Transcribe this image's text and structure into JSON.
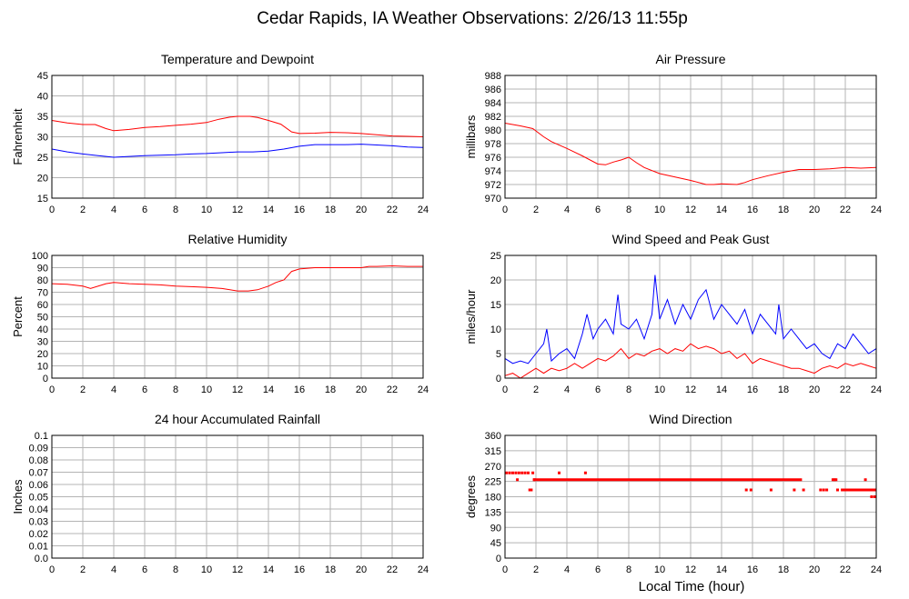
{
  "page_title": "Cedar Rapids, IA Weather Observations: 2/26/13 11:55p",
  "x_axis_label": "Local Time (hour)",
  "colors": {
    "red": "#ff0000",
    "blue": "#0000ff",
    "grid": "#b4b4b4",
    "axis": "#000000"
  },
  "chart_data": [
    {
      "id": "temp",
      "type": "line",
      "title": "Temperature and Dewpoint",
      "ylabel": "Fahrenheit",
      "xlim": [
        0,
        24
      ],
      "ylim": [
        15,
        45
      ],
      "xticks": [
        0,
        2,
        4,
        6,
        8,
        10,
        12,
        14,
        16,
        18,
        20,
        22,
        24
      ],
      "yticks": [
        "15",
        "20",
        "25",
        "30",
        "35",
        "40",
        "45"
      ],
      "series": [
        {
          "color": "#ff0000",
          "style": "line",
          "x": [
            0,
            1,
            2,
            2.8,
            3.5,
            4,
            5,
            6,
            7,
            8,
            9,
            10,
            10.8,
            11.5,
            12,
            12.8,
            13.3,
            14,
            14.8,
            15.5,
            16,
            17,
            18,
            19,
            20,
            21,
            22,
            23,
            24
          ],
          "y": [
            34,
            33.4,
            33,
            33,
            32,
            31.5,
            31.8,
            32.3,
            32.5,
            32.8,
            33.1,
            33.5,
            34.3,
            34.8,
            35,
            35,
            34.7,
            34,
            33.1,
            31.2,
            30.8,
            30.9,
            31.1,
            31,
            30.8,
            30.5,
            30.2,
            30.1,
            30
          ]
        },
        {
          "color": "#0000ff",
          "style": "line",
          "x": [
            0,
            1,
            2,
            3,
            4,
            5,
            6,
            7,
            8,
            9,
            10,
            11,
            12,
            13,
            14,
            15,
            16,
            17,
            18,
            19,
            20,
            21,
            22,
            23,
            24
          ],
          "y": [
            27,
            26.3,
            25.8,
            25.4,
            25,
            25.2,
            25.4,
            25.5,
            25.6,
            25.8,
            25.9,
            26.1,
            26.3,
            26.3,
            26.5,
            27,
            27.7,
            28.1,
            28.1,
            28.1,
            28.2,
            28,
            27.8,
            27.5,
            27.4
          ]
        }
      ]
    },
    {
      "id": "pressure",
      "type": "line",
      "title": "Air Pressure",
      "ylabel": "millibars",
      "xlim": [
        0,
        24
      ],
      "ylim": [
        970,
        988
      ],
      "xticks": [
        0,
        2,
        4,
        6,
        8,
        10,
        12,
        14,
        16,
        18,
        20,
        22,
        24
      ],
      "yticks": [
        "970",
        "972",
        "974",
        "976",
        "978",
        "980",
        "982",
        "984",
        "986",
        "988"
      ],
      "series": [
        {
          "color": "#ff0000",
          "style": "line",
          "x": [
            0,
            1,
            1.8,
            2.5,
            3,
            4,
            5,
            6,
            6.5,
            7,
            7.5,
            8,
            8.5,
            9,
            10,
            11,
            12,
            13,
            13.5,
            14,
            15,
            15.5,
            16,
            17,
            18,
            19,
            20,
            21,
            22,
            23,
            24
          ],
          "y": [
            981,
            980.6,
            980.2,
            979,
            978.3,
            977.3,
            976.2,
            975,
            974.9,
            975.3,
            975.6,
            976,
            975.2,
            974.5,
            973.6,
            973.1,
            972.6,
            972,
            972,
            972.1,
            972,
            972.3,
            972.7,
            973.3,
            973.8,
            974.2,
            974.2,
            974.3,
            974.5,
            974.4,
            974.5
          ]
        }
      ]
    },
    {
      "id": "humidity",
      "type": "line",
      "title": "Relative Humidity",
      "ylabel": "Percent",
      "xlim": [
        0,
        24
      ],
      "ylim": [
        0,
        100
      ],
      "xticks": [
        0,
        2,
        4,
        6,
        8,
        10,
        12,
        14,
        16,
        18,
        20,
        22,
        24
      ],
      "yticks": [
        "0",
        "10",
        "20",
        "30",
        "40",
        "50",
        "60",
        "70",
        "80",
        "90",
        "100"
      ],
      "series": [
        {
          "color": "#ff0000",
          "style": "line",
          "x": [
            0,
            1,
            2,
            2.5,
            3.5,
            4,
            5,
            6,
            7,
            8,
            9,
            10,
            11,
            12,
            12.7,
            13.3,
            14,
            14.5,
            15,
            15.5,
            16,
            17,
            18,
            19,
            20,
            20.5,
            21,
            22,
            23,
            24
          ],
          "y": [
            77,
            76.5,
            75,
            73,
            77,
            78,
            77,
            76.5,
            76,
            75,
            74.5,
            74,
            73,
            71,
            71,
            72,
            75,
            78,
            80,
            87,
            89,
            90,
            90,
            90,
            90,
            91,
            91,
            91.5,
            91,
            91
          ]
        }
      ]
    },
    {
      "id": "wind",
      "type": "line",
      "title": "Wind Speed and Peak Gust",
      "ylabel": "miles/hour",
      "xlim": [
        0,
        24
      ],
      "ylim": [
        0,
        25
      ],
      "xticks": [
        0,
        2,
        4,
        6,
        8,
        10,
        12,
        14,
        16,
        18,
        20,
        22,
        24
      ],
      "yticks": [
        "0",
        "5",
        "10",
        "15",
        "20",
        "25"
      ],
      "series": [
        {
          "color": "#0000ff",
          "style": "line",
          "x": [
            0,
            0.5,
            1,
            1.5,
            2,
            2.5,
            2.7,
            3,
            3.5,
            4,
            4.5,
            5,
            5.3,
            5.7,
            6,
            6.5,
            7,
            7.3,
            7.5,
            8,
            8.5,
            9,
            9.5,
            9.7,
            10,
            10.5,
            11,
            11.5,
            12,
            12.5,
            13,
            13.5,
            14,
            14.5,
            15,
            15.5,
            16,
            16.5,
            17,
            17.5,
            17.7,
            18,
            18.5,
            19,
            19.5,
            20,
            20.5,
            21,
            21.5,
            22,
            22.5,
            23,
            23.5,
            24
          ],
          "y": [
            4,
            3,
            3.5,
            3,
            5,
            7,
            10,
            3.5,
            5,
            6,
            4,
            9,
            13,
            8,
            10,
            12,
            9,
            17,
            11,
            10,
            12,
            8,
            13,
            21,
            12,
            16,
            11,
            15,
            12,
            16,
            18,
            12,
            15,
            13,
            11,
            14,
            9,
            13,
            11,
            9,
            15,
            8,
            10,
            8,
            6,
            7,
            5,
            4,
            7,
            6,
            9,
            7,
            5,
            6
          ]
        },
        {
          "color": "#ff0000",
          "style": "line",
          "x": [
            0,
            0.5,
            1,
            1.5,
            2,
            2.5,
            3,
            3.5,
            4,
            4.5,
            5,
            5.5,
            6,
            6.5,
            7,
            7.5,
            8,
            8.5,
            9,
            9.5,
            10,
            10.5,
            11,
            11.5,
            12,
            12.5,
            13,
            13.5,
            14,
            14.5,
            15,
            15.5,
            16,
            16.5,
            17,
            17.5,
            18,
            18.5,
            19,
            19.5,
            20,
            20.5,
            21,
            21.5,
            22,
            22.5,
            23,
            23.5,
            24
          ],
          "y": [
            0.5,
            1,
            0,
            1,
            2,
            1,
            2,
            1.5,
            2,
            3,
            2,
            3,
            4,
            3.5,
            4.5,
            6,
            4,
            5,
            4.5,
            5.5,
            6,
            5,
            6,
            5.5,
            7,
            6,
            6.5,
            6,
            5,
            5.5,
            4,
            5,
            3,
            4,
            3.5,
            3,
            2.5,
            2,
            2,
            1.5,
            1,
            2,
            2.5,
            2,
            3,
            2.5,
            3,
            2.5,
            2
          ]
        }
      ]
    },
    {
      "id": "rain",
      "type": "line",
      "title": "24 hour Accumulated Rainfall",
      "ylabel": "Inches",
      "xlim": [
        0,
        24
      ],
      "ylim": [
        0,
        0.1
      ],
      "xticks": [
        0,
        2,
        4,
        6,
        8,
        10,
        12,
        14,
        16,
        18,
        20,
        22,
        24
      ],
      "yticks": [
        "0.0",
        "0.01",
        "0.02",
        "0.03",
        "0.04",
        "0.05",
        "0.06",
        "0.07",
        "0.08",
        "0.09",
        "0.1"
      ],
      "series": [
        {
          "color": "#ff0000",
          "style": "line",
          "x": [
            0,
            24
          ],
          "y": [
            0,
            0
          ]
        }
      ]
    },
    {
      "id": "direction",
      "type": "scatter",
      "title": "Wind Direction",
      "ylabel": "degrees",
      "xlim": [
        0,
        24
      ],
      "ylim": [
        0,
        360
      ],
      "xticks": [
        0,
        2,
        4,
        6,
        8,
        10,
        12,
        14,
        16,
        18,
        20,
        22,
        24
      ],
      "yticks": [
        "0",
        "45",
        "90",
        "135",
        "180",
        "225",
        "270",
        "315",
        "360"
      ],
      "series": [
        {
          "color": "#ff0000",
          "style": "dots",
          "x": [
            0.1,
            0.3,
            0.5,
            0.7,
            0.9,
            1.1,
            1.3,
            1.5,
            0.8,
            1.6,
            1.7,
            1.8,
            1.9,
            3.5,
            5.2,
            15.6,
            15.9,
            17.2,
            18.7,
            19.3,
            20.4,
            20.6,
            20.8,
            21.5,
            21.8,
            22.3,
            22.6,
            23.0,
            23.4,
            23.7,
            23.9,
            23.3,
            21.2,
            21.3,
            21.4
          ],
          "y": [
            250,
            250,
            250,
            250,
            250,
            250,
            250,
            250,
            230,
            200,
            200,
            250,
            230,
            250,
            250,
            200,
            200,
            200,
            200,
            200,
            200,
            200,
            200,
            200,
            200,
            200,
            200,
            200,
            200,
            180,
            180,
            230,
            230,
            230,
            230
          ]
        },
        {
          "color": "#ff0000",
          "style": "thickline",
          "x": [
            1.8,
            15.5
          ],
          "y": [
            230,
            230
          ]
        },
        {
          "color": "#ff0000",
          "style": "thickline",
          "x": [
            15.5,
            19.2
          ],
          "y": [
            230,
            230
          ]
        },
        {
          "color": "#ff0000",
          "style": "thickline",
          "x": [
            21.8,
            24
          ],
          "y": [
            200,
            200
          ]
        }
      ]
    }
  ]
}
